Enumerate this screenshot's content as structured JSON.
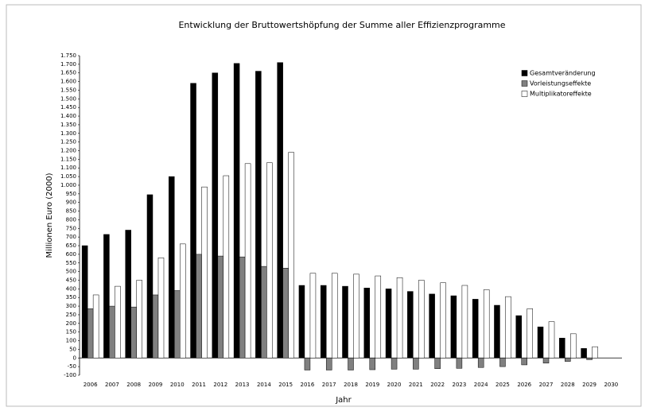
{
  "chart_data": {
    "type": "bar",
    "title": "Entwicklung der Bruttowertshöpfung der Summe aller Effizienzprogramme",
    "x_label": "Jahr",
    "y_label": "Millionen Euro (2000)",
    "categories": [
      "2006",
      "2007",
      "2008",
      "2009",
      "2010",
      "2011",
      "2012",
      "2013",
      "2014",
      "2015",
      "2016",
      "2017",
      "2018",
      "2019",
      "2020",
      "2021",
      "2022",
      "2023",
      "2024",
      "2025",
      "2026",
      "2027",
      "2028",
      "2029",
      "2030"
    ],
    "series": [
      {
        "name": "Gesamtveränderung",
        "color": "#000000",
        "values": [
          650,
          715,
          740,
          945,
          1050,
          1590,
          1650,
          1705,
          1660,
          1710,
          420,
          420,
          415,
          405,
          400,
          385,
          370,
          360,
          340,
          305,
          245,
          180,
          115,
          55,
          0
        ]
      },
      {
        "name": "Vorleistungseffekte",
        "color": "#808080",
        "values": [
          285,
          300,
          295,
          365,
          390,
          600,
          590,
          585,
          530,
          520,
          -70,
          -70,
          -70,
          -68,
          -65,
          -65,
          -62,
          -60,
          -55,
          -50,
          -40,
          -30,
          -20,
          -10,
          0
        ]
      },
      {
        "name": "Multiplikatoreffekte",
        "color": "#ffffff",
        "values": [
          365,
          415,
          450,
          580,
          660,
          990,
          1055,
          1125,
          1130,
          1190,
          490,
          490,
          485,
          475,
          465,
          450,
          435,
          420,
          395,
          355,
          285,
          210,
          140,
          65,
          0
        ]
      }
    ],
    "ylim": [
      -100,
      1750
    ],
    "yticks": [
      -100,
      -50,
      0,
      50,
      100,
      150,
      200,
      250,
      300,
      350,
      400,
      450,
      500,
      550,
      600,
      650,
      700,
      750,
      800,
      850,
      900,
      950,
      {
        "value": 1000,
        "label": "1.000"
      },
      {
        "value": 1050,
        "label": "1.050"
      },
      {
        "value": 1100,
        "label": "1.100"
      },
      {
        "value": 1150,
        "label": "1.150"
      },
      {
        "value": 1200,
        "label": "1.200"
      },
      {
        "value": 1250,
        "label": "1.250"
      },
      {
        "value": 1300,
        "label": "1.300"
      },
      {
        "value": 1350,
        "label": "1.350"
      },
      {
        "value": 1400,
        "label": "1.400"
      },
      {
        "value": 1450,
        "label": "1.450"
      },
      {
        "value": 1500,
        "label": "1.500"
      },
      {
        "value": 1550,
        "label": "1.550"
      },
      {
        "value": 1600,
        "label": "1.600"
      },
      {
        "value": 1650,
        "label": "1.650"
      },
      {
        "value": 1700,
        "label": "1.700"
      },
      {
        "value": 1750,
        "label": "1.750"
      }
    ],
    "grid": false,
    "legend": "top-right"
  }
}
